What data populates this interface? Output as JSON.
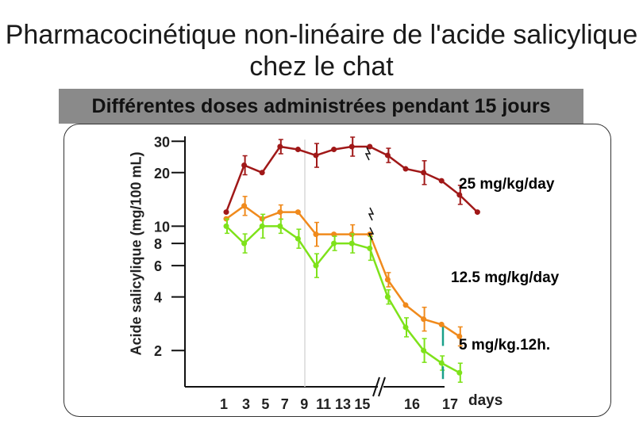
{
  "title": "Pharmacocinétique non-linéaire de l'acide salicylique chez le chat",
  "subtitle": "Différentes doses administrées pendant 15 jours",
  "chart_data": {
    "type": "line",
    "title": "Pharmacocinétique non-linéaire de l'acide salicylique chez le chat",
    "subtitle": "Différentes doses administrées pendant 15 jours",
    "ylabel": "Acide salicylique (mg/100 mL)",
    "xlabel": "days",
    "y_scale": "log",
    "ylim": [
      1.25,
      32
    ],
    "y_ticks": [
      30,
      20,
      10,
      8,
      6,
      4,
      2
    ],
    "y_tick_labels": [
      "30",
      "20",
      "10",
      "8",
      "6",
      "4",
      "2"
    ],
    "x_ticks": [
      1,
      3,
      5,
      7,
      9,
      11,
      13,
      15,
      16,
      17
    ],
    "x_tick_labels": [
      "1",
      "3",
      "5",
      "7",
      "9",
      "11",
      "13",
      "15",
      "16",
      "17"
    ],
    "x_axis_break_after": 15,
    "vertical_reference_line_x": 9,
    "grid": false,
    "series": [
      {
        "name": "25 mg/kg/day",
        "color": "#a01818",
        "x": [
          1,
          2,
          3,
          4,
          5,
          6,
          7,
          8,
          9,
          10,
          11,
          11.3,
          12,
          13,
          14
        ],
        "y": [
          12,
          22,
          20,
          28,
          27,
          25,
          27,
          28,
          28,
          25,
          21,
          20,
          18,
          15,
          12
        ]
      },
      {
        "name": "12.5 mg/kg/day",
        "color": "#f08a1c",
        "x": [
          1,
          2,
          3,
          4,
          5,
          6,
          7,
          8,
          9,
          10,
          11,
          12,
          13,
          14
        ],
        "y": [
          11,
          13,
          11,
          12,
          12,
          9,
          9,
          9,
          9,
          5,
          3.6,
          3,
          2.8,
          2.4
        ]
      },
      {
        "name": "5 mg/kg.12h.",
        "color": "#7ee21a",
        "x": [
          1,
          2,
          3,
          4,
          5,
          6,
          7,
          8,
          9,
          10,
          11,
          12,
          13,
          14
        ],
        "y": [
          10,
          8,
          10,
          10,
          8.5,
          6,
          8,
          8,
          7.5,
          4,
          2.7,
          2,
          1.7,
          1.5
        ]
      }
    ]
  }
}
